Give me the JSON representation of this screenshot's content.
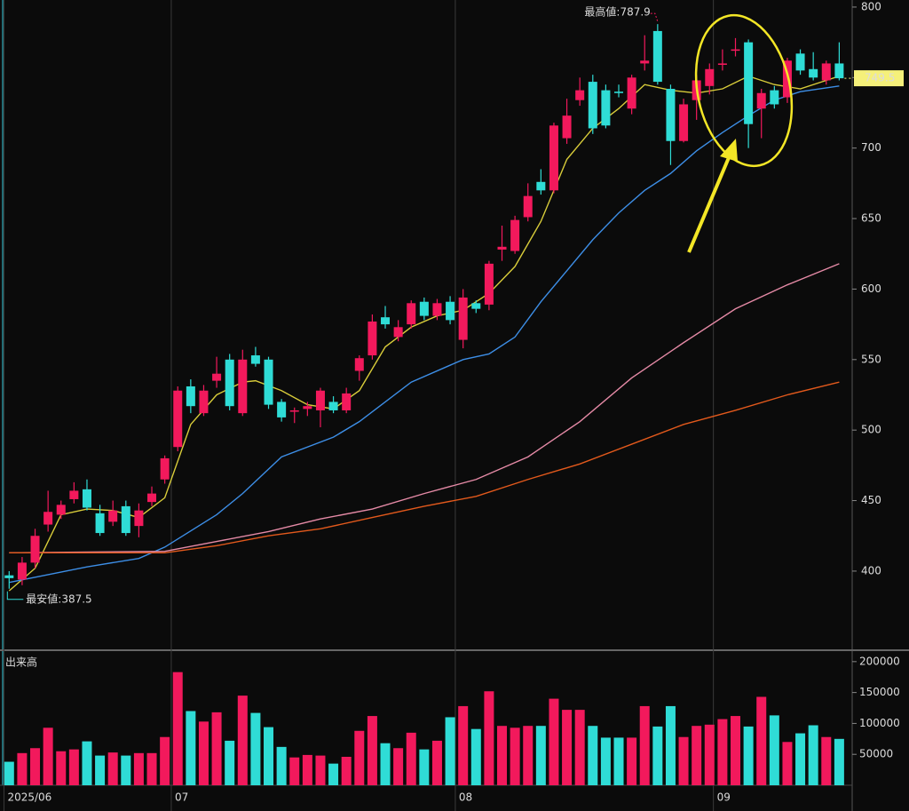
{
  "chart_data": {
    "type": "candlestick",
    "up_color": "#f2195c",
    "down_color": "#2fdcd6",
    "xlim": [
      -0.5,
      65
    ],
    "xticks": [
      {
        "value": -0.4,
        "label": "2025/06"
      },
      {
        "value": 12.5,
        "label": "07"
      },
      {
        "value": 34.4,
        "label": "08"
      },
      {
        "value": 54.3,
        "label": "09"
      }
    ],
    "ylim": [
      348.3,
      805
    ],
    "yticks": [
      400,
      450,
      500,
      550,
      600,
      650,
      700,
      750,
      800
    ],
    "open": [
      397,
      394,
      406,
      433,
      440,
      451,
      458,
      441,
      435,
      446,
      432,
      449,
      465,
      488,
      531,
      512,
      535,
      550,
      512,
      553,
      550,
      520,
      513,
      515,
      514,
      520,
      514,
      542,
      553,
      580,
      566,
      575,
      591,
      581,
      591,
      564,
      590,
      589,
      628,
      627,
      651,
      676,
      670,
      707,
      734,
      747,
      741,
      740,
      728,
      760,
      783,
      742,
      705,
      734,
      744,
      759,
      769,
      775,
      728,
      741,
      736,
      767,
      756,
      748,
      760
    ],
    "high": [
      400,
      410,
      430,
      457,
      450,
      463,
      465,
      447,
      450,
      450,
      448,
      460,
      482,
      531,
      536,
      532,
      552,
      554,
      557,
      559,
      552,
      522,
      516,
      520,
      530,
      524,
      530,
      553,
      582,
      588,
      578,
      592,
      594,
      593,
      595,
      600,
      592,
      620,
      645,
      652,
      675,
      685,
      718,
      735,
      750,
      752,
      745,
      745,
      752,
      780,
      787.9,
      745,
      735,
      752,
      760,
      770,
      778,
      777,
      742,
      744,
      764,
      770,
      768,
      762,
      775
    ],
    "low": [
      387.5,
      390,
      402,
      428,
      437,
      448,
      443,
      425,
      432,
      425,
      424,
      446,
      462,
      485,
      512,
      510,
      530,
      514,
      510,
      545,
      515,
      506,
      505,
      510,
      502,
      512,
      512,
      535,
      550,
      572,
      563,
      572,
      578,
      578,
      575,
      558,
      583,
      585,
      620,
      625,
      648,
      667,
      668,
      703,
      730,
      710,
      714,
      736,
      724,
      755,
      745,
      688,
      704,
      720,
      738,
      755,
      765,
      700,
      707,
      728,
      732,
      752,
      748,
      745,
      748
    ],
    "close": [
      395,
      406,
      425,
      442,
      447,
      457,
      445,
      427,
      443,
      427,
      443,
      455,
      480,
      528,
      517,
      528,
      540,
      517,
      550,
      547,
      518,
      509,
      514,
      517,
      528,
      514,
      526,
      551,
      577,
      575,
      573,
      590,
      581,
      590,
      578,
      594,
      586,
      618,
      630,
      649,
      666,
      670,
      716,
      723,
      741,
      714,
      716,
      739,
      750,
      762,
      747,
      705,
      731,
      748,
      756,
      760,
      770,
      717,
      739,
      731,
      762,
      755,
      750,
      760,
      749.5
    ],
    "high_label": "最高値:787.9",
    "low_label": "最安値:387.5",
    "lines": [
      {
        "color": "#d8cc3a",
        "x": [
          0,
          2,
          4,
          6,
          8,
          10,
          12,
          14,
          16,
          18,
          19,
          21,
          23,
          25,
          27,
          29,
          31,
          33,
          35,
          37,
          39,
          41,
          43,
          45,
          47,
          49,
          51,
          53,
          55,
          57,
          59,
          61,
          63,
          64
        ],
        "values": [
          386,
          402,
          440,
          444,
          443,
          438,
          452,
          504,
          525,
          534,
          535,
          528,
          518,
          515,
          528,
          559,
          573,
          581,
          585,
          597,
          616,
          648,
          692,
          714,
          728,
          745,
          741,
          739,
          742,
          751,
          745,
          742,
          748,
          751
        ]
      },
      {
        "color": "#3d8ee6",
        "x": [
          0,
          6,
          10,
          12,
          16,
          18,
          21,
          25,
          27,
          31,
          35,
          37,
          39,
          41,
          43,
          45,
          47,
          49,
          51,
          53,
          55,
          57,
          59,
          61,
          64
        ],
        "values": [
          392,
          403,
          409,
          417,
          440,
          455,
          481,
          495,
          506,
          534,
          550,
          554,
          566,
          591,
          613,
          635,
          654,
          670,
          682,
          698,
          711,
          723,
          734,
          740,
          744
        ]
      },
      {
        "color": "#e58aa6",
        "x": [
          0,
          12,
          16,
          20,
          24,
          28,
          32,
          36,
          40,
          44,
          48,
          52,
          56,
          60,
          64
        ],
        "values": [
          413,
          414,
          421,
          428,
          437,
          444,
          455,
          465,
          481,
          506,
          537,
          562,
          586,
          603,
          618
        ]
      },
      {
        "color": "#e2591c",
        "x": [
          0,
          12,
          16,
          20,
          24,
          28,
          32,
          36,
          40,
          44,
          48,
          52,
          56,
          60,
          64
        ],
        "values": [
          413,
          413,
          418,
          425,
          430,
          438,
          446,
          453,
          465,
          476,
          490,
          504,
          514,
          525,
          534
        ]
      }
    ],
    "volume_label": "出来高",
    "volume": [
      38000,
      52000,
      60000,
      93000,
      55000,
      58000,
      71000,
      48000,
      53000,
      48000,
      52000,
      52000,
      78000,
      183000,
      120000,
      103000,
      118000,
      72000,
      145000,
      117000,
      94000,
      62000,
      45000,
      49000,
      48000,
      35000,
      46000,
      88000,
      112000,
      68000,
      60000,
      85000,
      58000,
      72000,
      110000,
      128000,
      91000,
      152000,
      96000,
      93000,
      96000,
      96000,
      140000,
      122000,
      122000,
      96000,
      77000,
      77000,
      77000,
      128000,
      95000,
      128000,
      78000,
      96000,
      98000,
      107000,
      112000,
      95000,
      143000,
      113000,
      70000,
      84000,
      97000,
      78000,
      75000
    ],
    "volume_ylim": [
      0,
      217000
    ],
    "volume_yticks": [
      50000,
      100000,
      150000,
      200000
    ]
  }
}
